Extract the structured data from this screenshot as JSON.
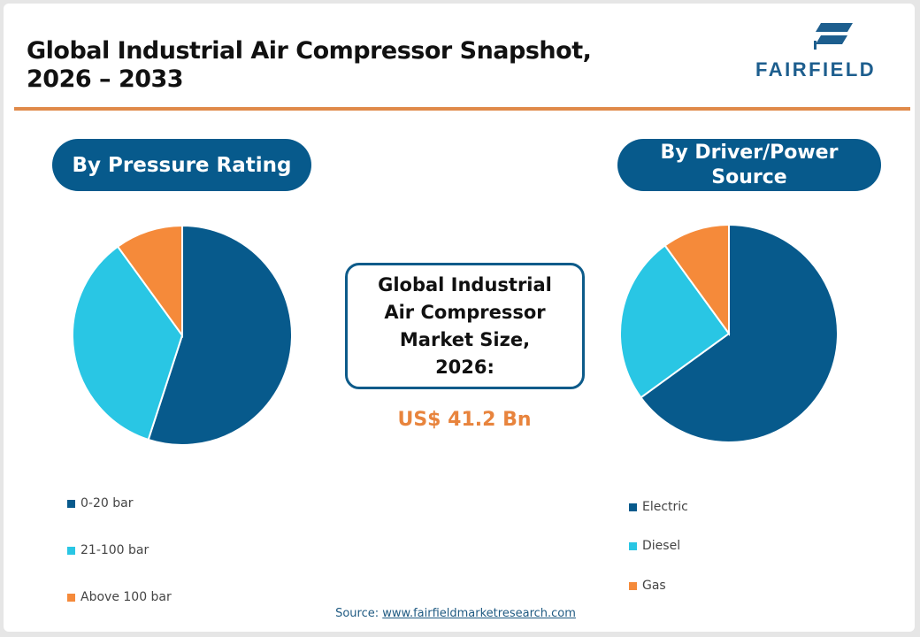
{
  "header": {
    "title_line1": "Global Industrial Air Compressor Snapshot,",
    "title_line2": "2026 – 2033",
    "logo_text": "FAIRFIELD"
  },
  "colors": {
    "primary": "#075a8c",
    "cyan": "#29c6e4",
    "orange": "#f58a3a",
    "rule": "#e08a4a",
    "value": "#e8843d"
  },
  "left_panel": {
    "heading": "By Pressure Rating"
  },
  "right_panel": {
    "heading_line1": "By Driver/Power",
    "heading_line2": "Source"
  },
  "center": {
    "label_lines": [
      "Global Industrial",
      "Air Compressor",
      "Market Size,",
      "2026:"
    ],
    "value": "US$ 41.2 Bn"
  },
  "source": {
    "prefix": "Source: ",
    "link": "www.fairfieldmarketresearch.com"
  },
  "chart_data": [
    {
      "type": "pie",
      "title": "By Pressure Rating",
      "categories": [
        "0-20 bar",
        "21-100 bar",
        "Above 100 bar"
      ],
      "values": [
        55,
        35,
        10
      ],
      "colors": [
        "#075a8c",
        "#29c6e4",
        "#f58a3a"
      ],
      "legend_position": "bottom-left"
    },
    {
      "type": "pie",
      "title": "By Driver/Power Source",
      "categories": [
        "Electric",
        "Diesel",
        "Gas"
      ],
      "values": [
        65,
        25,
        10
      ],
      "colors": [
        "#075a8c",
        "#29c6e4",
        "#f58a3a"
      ],
      "legend_position": "bottom-left"
    }
  ]
}
